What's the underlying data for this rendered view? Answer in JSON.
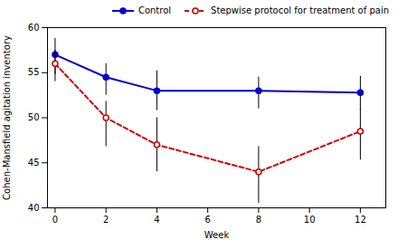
{
  "chart_data": {
    "type": "line",
    "xlabel": "Week",
    "ylabel": "Cohen-Mansfield agitation inventory",
    "x": [
      0,
      2,
      4,
      8,
      12
    ],
    "xlim": [
      -0.3,
      13.0
    ],
    "ylim": [
      40,
      60
    ],
    "xticks": [
      0,
      2,
      4,
      6,
      8,
      10,
      12
    ],
    "yticks": [
      40,
      45,
      50,
      55,
      60
    ],
    "grid": false,
    "legend": "top-right",
    "series": [
      {
        "name": "Control",
        "color": "#0000cc",
        "marker": "circle",
        "line_style": "solid",
        "values": [
          57.0,
          54.5,
          53.0,
          53.0,
          52.8
        ],
        "error_lower": [
          2.2,
          2.0,
          2.2,
          2.0,
          2.0
        ],
        "error_upper": [
          1.8,
          1.5,
          2.2,
          1.5,
          1.8
        ]
      },
      {
        "name": "Stepwise protocol for treatment of pain",
        "color": "#cc0000",
        "marker": "open_circle",
        "line_style": "dashed",
        "values": [
          56.0,
          50.0,
          47.0,
          44.0,
          48.5
        ],
        "error_lower": [
          2.0,
          3.2,
          3.0,
          3.5,
          3.2
        ],
        "error_upper": [
          1.5,
          1.8,
          3.0,
          2.8,
          2.5
        ]
      }
    ]
  }
}
